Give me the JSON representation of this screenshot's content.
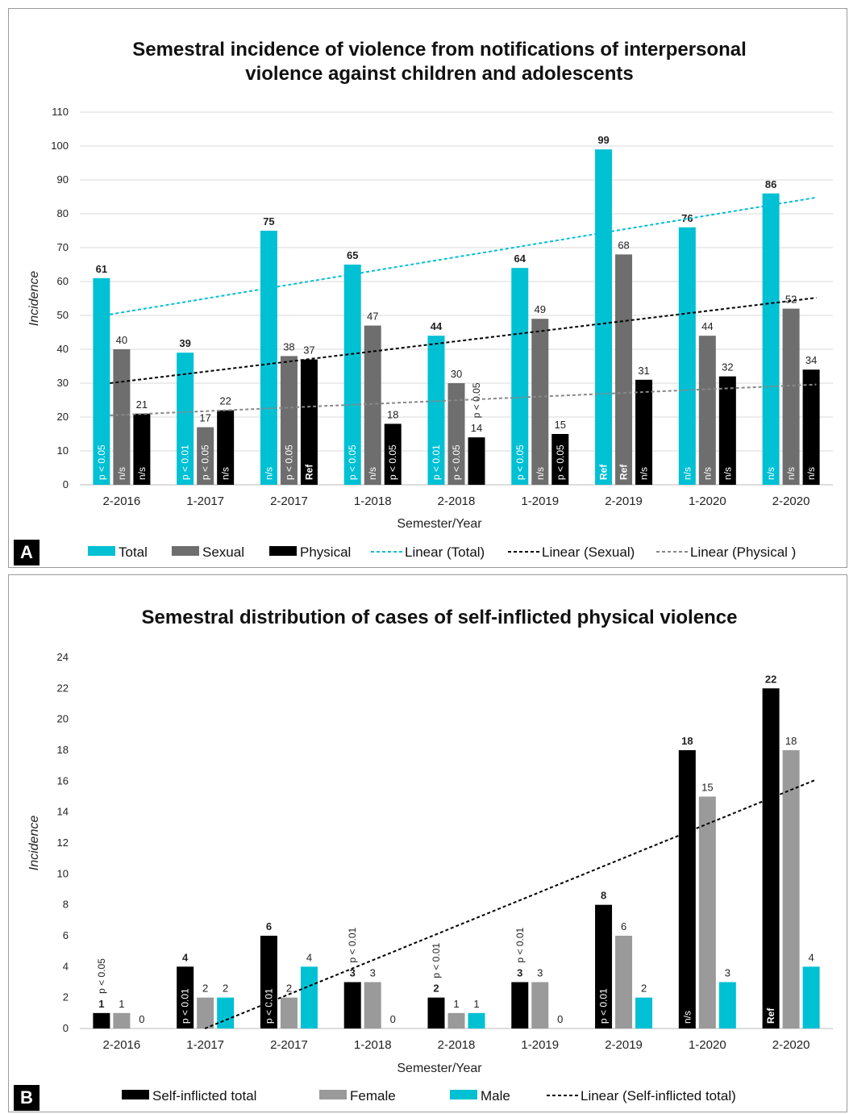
{
  "chart_data": [
    {
      "type": "bar",
      "panel": "A",
      "title_line1": "Semestral incidence of violence from notifications of interpersonal",
      "title_line2": "violence against children and adolescents",
      "xlabel": "Semester/Year",
      "ylabel": "Incidence",
      "ylim": [
        0,
        110
      ],
      "ytick_step": 10,
      "categories": [
        "2-2016",
        "1-2017",
        "2-2017",
        "1-2018",
        "2-2018",
        "1-2019",
        "2-2019",
        "1-2020",
        "2-2020"
      ],
      "series": [
        {
          "name": "Total",
          "color": "#00c0d4",
          "values": [
            61,
            39,
            75,
            65,
            44,
            64,
            99,
            76,
            86
          ],
          "annotations": [
            "p < 0.05",
            "p < 0.01",
            "n/s",
            "p < 0.05",
            "p < 0.01",
            "p < 0.05",
            "Ref",
            "n/s",
            "n/s"
          ]
        },
        {
          "name": "Sexual",
          "color": "#6e6e6e",
          "values": [
            40,
            17,
            38,
            47,
            30,
            49,
            68,
            44,
            52
          ],
          "annotations": [
            "n/s",
            "p < 0.05",
            "p < 0.05",
            "n/s",
            "p < 0.05",
            "n/s",
            "Ref",
            "n/s",
            "n/s"
          ]
        },
        {
          "name": "Physical",
          "color": "#000000",
          "values": [
            21,
            22,
            37,
            18,
            14,
            15,
            31,
            32,
            34
          ],
          "annotations": [
            "n/s",
            "n/s",
            "Ref",
            "p < 0.05",
            "p < 0.05",
            "p < 0.05",
            "n/s",
            "n/s",
            "n/s"
          ]
        }
      ],
      "trendlines": [
        {
          "name": "Linear (Total)",
          "color": "#00c0d4",
          "start": 50.3,
          "end": 84.8
        },
        {
          "name": "Linear (Sexual)",
          "color": "#000000",
          "start": 30.0,
          "end": 55.2
        },
        {
          "name": "Linear (Physical )",
          "color": "#888888",
          "start": 20.5,
          "end": 29.6
        }
      ],
      "legend": [
        "Total",
        "Sexual",
        "Physical",
        "Linear (Total)",
        "Linear (Sexual)",
        "Linear (Physical )"
      ],
      "legend_position": "bottom",
      "grid": true
    },
    {
      "type": "bar",
      "panel": "B",
      "title_line1": "Semestral distribution of cases of self-inflicted physical violence",
      "xlabel": "Semester/Year",
      "ylabel": "Incidence",
      "ylim": [
        0,
        24
      ],
      "ytick_step": 2,
      "categories": [
        "2-2016",
        "1-2017",
        "2-2017",
        "1-2018",
        "2-2018",
        "1-2019",
        "2-2019",
        "1-2020",
        "2-2020"
      ],
      "series": [
        {
          "name": "Self-inflicted total",
          "color": "#000000",
          "values": [
            1,
            4,
            6,
            3,
            2,
            3,
            8,
            18,
            22
          ],
          "annotations": [
            "p < 0.05",
            "p < 0.01",
            "p < 0.01",
            "p < 0.01",
            "p < 0.01",
            "p < 0.01",
            "p < 0.01",
            "n/s",
            "Ref"
          ]
        },
        {
          "name": "Female",
          "color": "#9a9a9a",
          "values": [
            1,
            2,
            2,
            3,
            1,
            3,
            6,
            15,
            18
          ]
        },
        {
          "name": "Male",
          "color": "#00c0d4",
          "values": [
            0,
            2,
            4,
            0,
            1,
            0,
            2,
            3,
            4
          ]
        }
      ],
      "trendlines": [
        {
          "name": "Linear (Self-inflicted total)",
          "color": "#000000",
          "start": -2.5,
          "end": 16.1
        }
      ],
      "legend": [
        "Self-inflicted total",
        "Female",
        "Male",
        "Linear (Self-inflicted total)"
      ],
      "legend_position": "bottom",
      "grid": false
    }
  ],
  "panel_labels": [
    "A",
    "B"
  ]
}
